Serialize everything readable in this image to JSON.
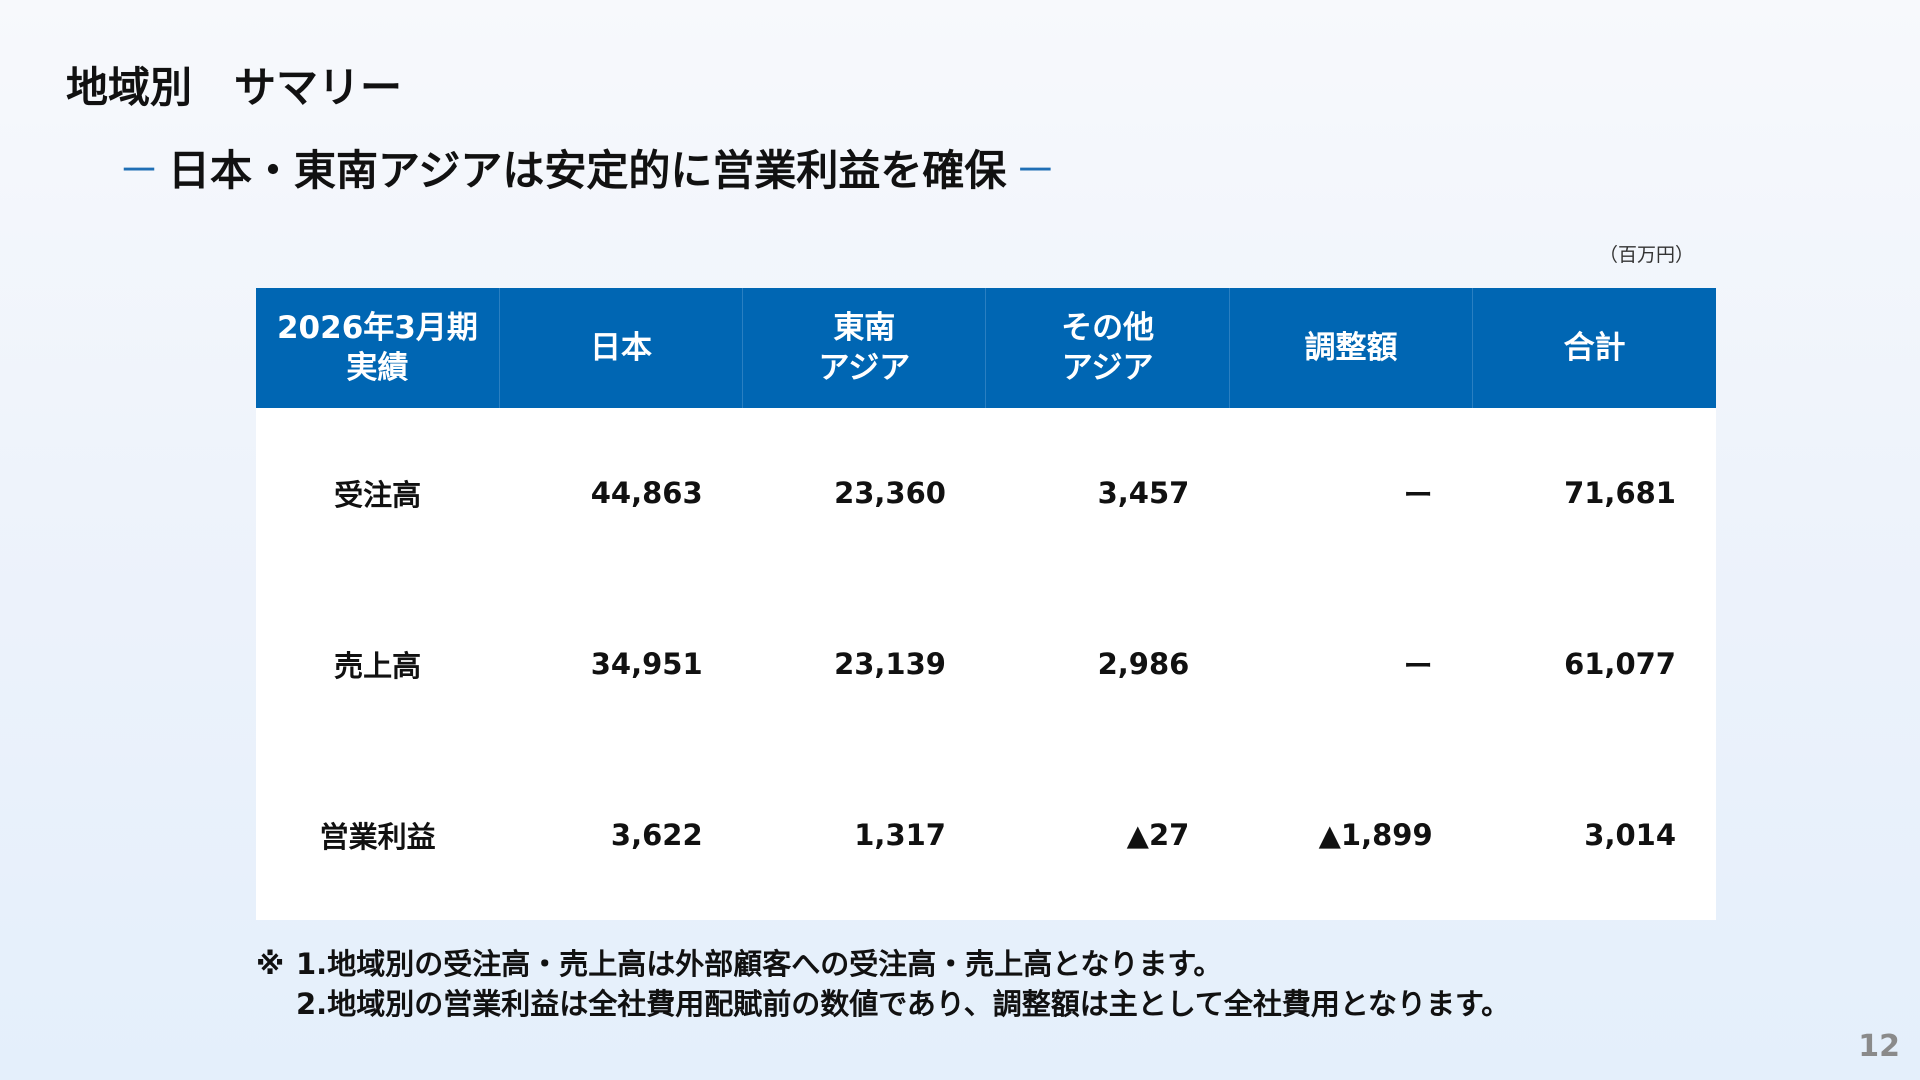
{
  "slide": {
    "title": "地域別　サマリー",
    "subtitle": "日本・東南アジアは安定的に営業利益を確保",
    "subtitle_dash": "－",
    "unit": "（百万円）",
    "page_number": "12"
  },
  "table": {
    "headers": [
      "2026年3月期\n実績",
      "日本",
      "東南\nアジア",
      "その他\nアジア",
      "調整額",
      "合計"
    ],
    "rows": [
      {
        "label": "受注高",
        "values": [
          "44,863",
          "23,360",
          "3,457",
          "ー",
          "71,681"
        ]
      },
      {
        "label": "売上高",
        "values": [
          "34,951",
          "23,139",
          "2,986",
          "ー",
          "61,077"
        ]
      },
      {
        "label": "営業利益",
        "values": [
          "3,622",
          "1,317",
          "▲27",
          "▲1,899",
          "3,014"
        ]
      }
    ]
  },
  "notes": {
    "mark": "※",
    "lines": [
      "1.地域別の受注高・売上高は外部顧客への受注高・売上高となります。",
      "2.地域別の営業利益は全社費用配賦前の数値であり、調整額は主として全社費用となります。"
    ]
  },
  "colors": {
    "header_background": "#0066b3",
    "accent_dash": "#1f6fb5",
    "page_number": "#8a8a8a"
  }
}
